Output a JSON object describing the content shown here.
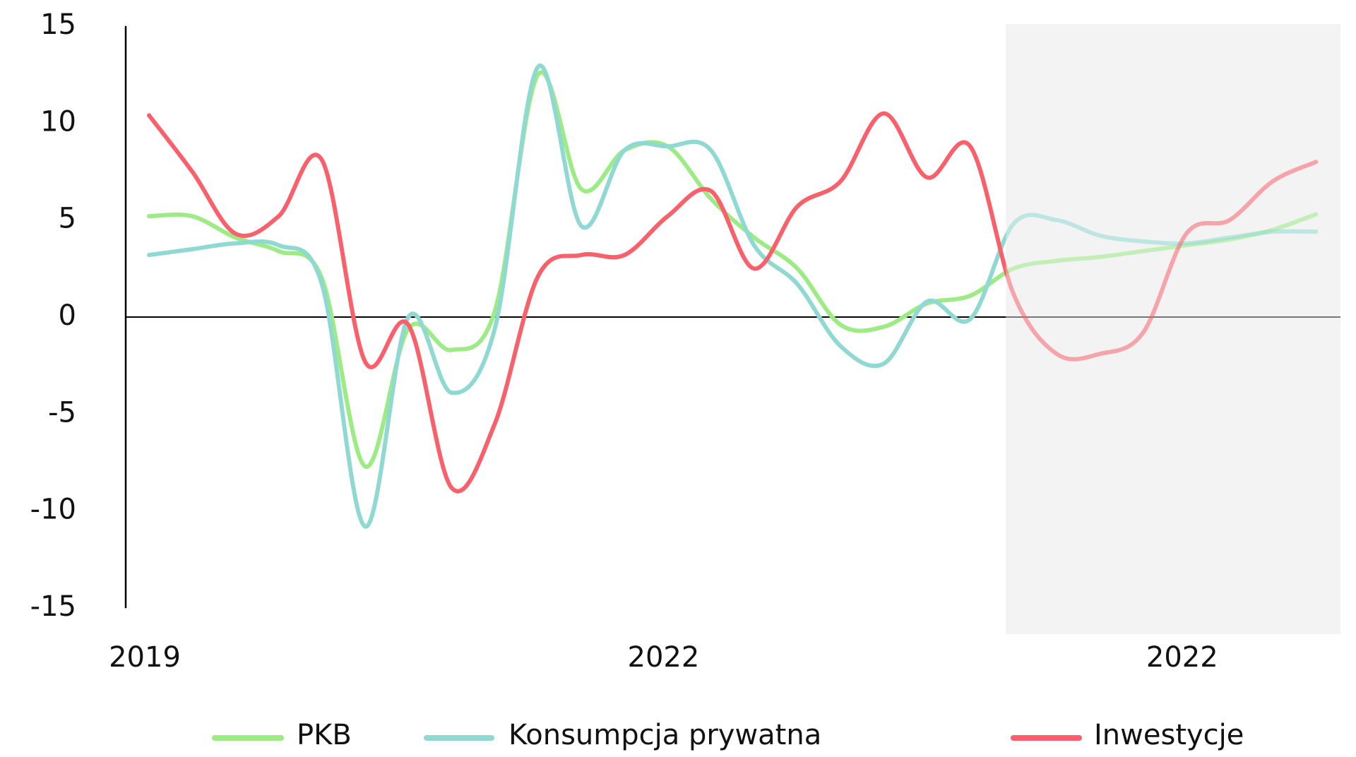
{
  "chart_data": {
    "type": "line",
    "categories": [
      "2019",
      null,
      null,
      null,
      null,
      null,
      null,
      null,
      null,
      null,
      null,
      null,
      "2022",
      null,
      null,
      null,
      null,
      null,
      null,
      null,
      null,
      null,
      null,
      null,
      "2022",
      null,
      null,
      null
    ],
    "forecast_from": 20,
    "ylim": [
      -15,
      15
    ],
    "yticks": [
      -15,
      -10,
      -5,
      0,
      5,
      10,
      15
    ],
    "series": [
      {
        "name": "PKB",
        "color": "#9ceb84",
        "values": [
          5.2,
          5.2,
          4.1,
          3.4,
          2.0,
          -7.7,
          -0.6,
          -1.7,
          0.3,
          12.5,
          6.6,
          8.6,
          8.8,
          6.1,
          4.1,
          2.5,
          -0.4,
          -0.5,
          0.7,
          1.1,
          2.5,
          2.9,
          3.1,
          3.4,
          3.7,
          4.0,
          4.5,
          5.3
        ]
      },
      {
        "name": "Konsumpcja prywatna",
        "color": "#8fd9d2",
        "values": [
          3.2,
          3.5,
          3.8,
          3.7,
          1.7,
          -10.8,
          0,
          -3.9,
          -0.6,
          12.9,
          4.7,
          8.6,
          8.8,
          8.6,
          3.7,
          1.7,
          -1.5,
          -2.4,
          0.8,
          -0.1,
          4.8,
          5.0,
          4.2,
          3.9,
          3.8,
          4.1,
          4.4,
          4.4
        ]
      },
      {
        "name": "Inwestycje",
        "color": "#f8606b",
        "values": [
          10.4,
          7.5,
          4.3,
          5.2,
          8.1,
          -2.3,
          -0.4,
          -8.8,
          -5.5,
          2.1,
          3.2,
          3.2,
          5.2,
          6.5,
          2.5,
          5.7,
          7.0,
          10.5,
          7.2,
          8.8,
          1.2,
          -1.9,
          -1.9,
          -0.8,
          4.3,
          5.0,
          7.0,
          8.0
        ]
      }
    ]
  }
}
